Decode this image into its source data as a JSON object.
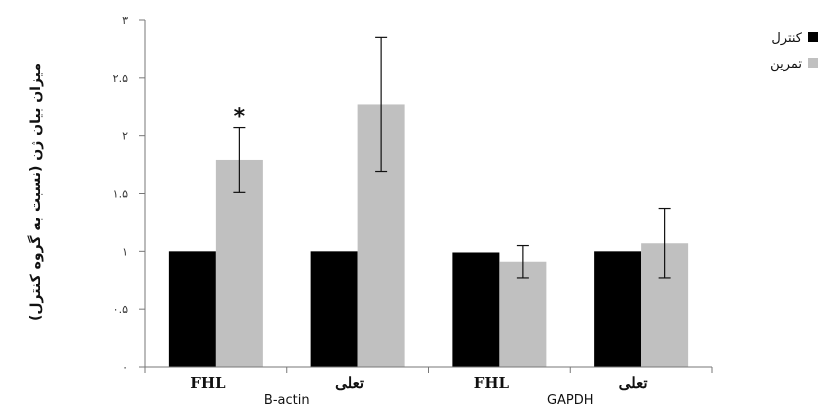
{
  "chart_data": {
    "type": "bar",
    "ylabel": "میزان بیان ژن (نسبت به گروه کنترل)",
    "ylim": [
      0,
      3
    ],
    "yticks": [
      {
        "value": 0,
        "label": "۰"
      },
      {
        "value": 0.5,
        "label": "۰.۵"
      },
      {
        "value": 1,
        "label": "۱"
      },
      {
        "value": 1.5,
        "label": "۱.۵"
      },
      {
        "value": 2,
        "label": "۲"
      },
      {
        "value": 2.5,
        "label": "۲.۵"
      },
      {
        "value": 3,
        "label": "۳"
      }
    ],
    "categories": [
      "FHL",
      "تعلی",
      "FHL",
      "تعلی"
    ],
    "groups": [
      {
        "label": "B-actin",
        "categories": [
          0,
          1
        ]
      },
      {
        "label": "GAPDH",
        "categories": [
          2,
          3
        ]
      }
    ],
    "series": [
      {
        "name": "کنترل",
        "color": "#000000",
        "values": [
          1.0,
          1.0,
          0.99,
          1.0
        ],
        "errors": [
          0,
          0,
          0,
          0
        ]
      },
      {
        "name": "تمرین",
        "color": "#c0c0c0",
        "values": [
          1.79,
          2.27,
          0.91,
          1.07
        ],
        "errors": [
          0.28,
          0.58,
          0.14,
          0.3
        ]
      }
    ],
    "annotations": [
      {
        "text": "*",
        "category": 0,
        "series": 1
      }
    ],
    "grid": false,
    "legend_position": "right"
  }
}
